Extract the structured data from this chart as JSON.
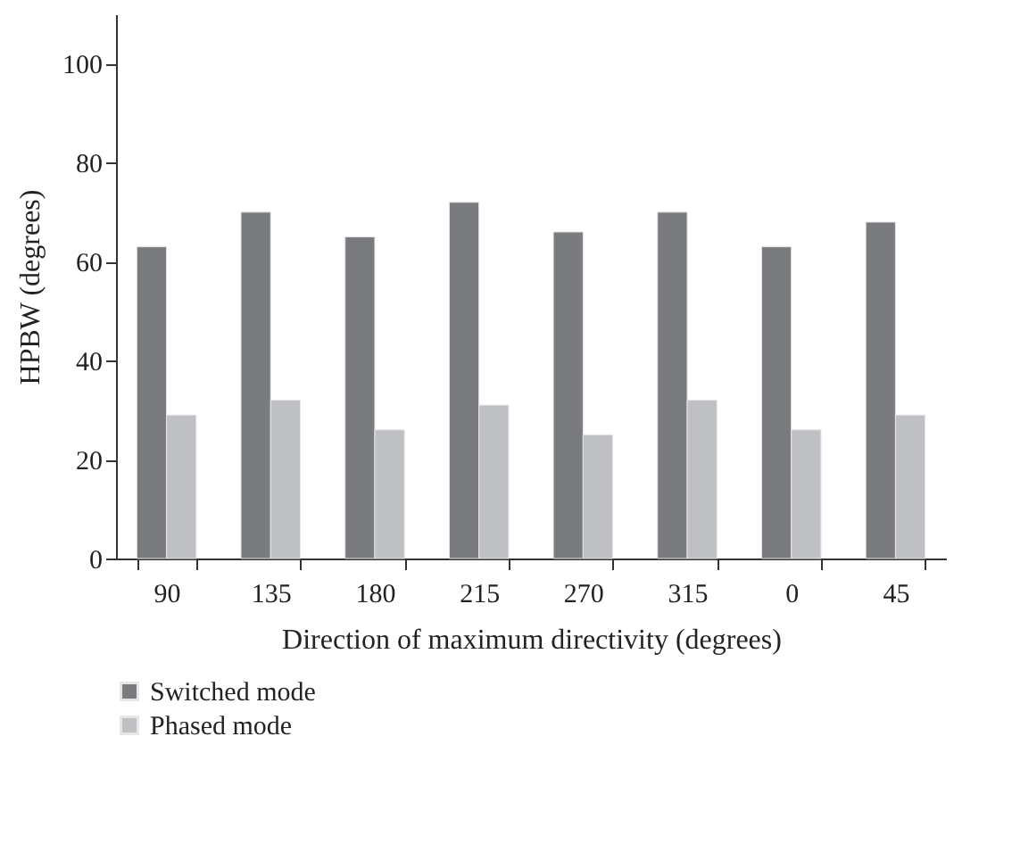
{
  "chart_data": {
    "type": "bar",
    "xlabel": "Direction of maximum directivity (degrees)",
    "ylabel": "HPBW (degrees)",
    "categories": [
      "90",
      "135",
      "180",
      "215",
      "270",
      "315",
      "0",
      "45"
    ],
    "series": [
      {
        "name": "Switched mode",
        "color": "#7a7b7f",
        "values": [
          63,
          70,
          65,
          72,
          66,
          70,
          63,
          68
        ]
      },
      {
        "name": "Phased mode",
        "color": "#bfc0c4",
        "values": [
          29,
          32,
          26,
          31,
          25,
          32,
          26,
          29
        ]
      }
    ],
    "ylim": [
      0,
      110
    ],
    "yticks": [
      0,
      20,
      40,
      60,
      80,
      100
    ],
    "grid": false,
    "legend": "bottom"
  }
}
